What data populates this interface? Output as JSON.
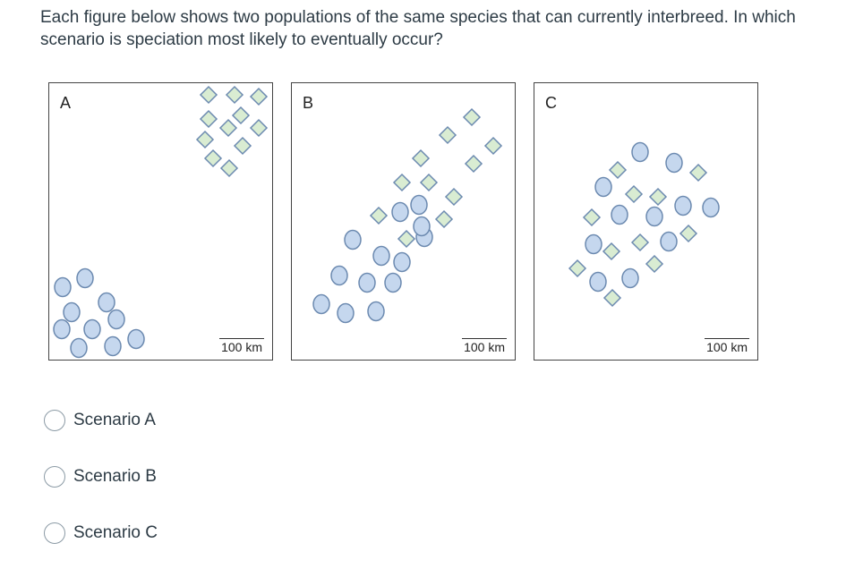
{
  "question": {
    "text": "Each figure below shows two populations of the same species that can currently interbreed. In which scenario is speciation most likely to eventually occur?"
  },
  "panels": [
    {
      "letter": "A",
      "scale": "100 km"
    },
    {
      "letter": "B",
      "scale": "100 km"
    },
    {
      "letter": "C",
      "scale": "100 km"
    }
  ],
  "options": [
    {
      "label": "Scenario A",
      "selected": false
    },
    {
      "label": "Scenario B",
      "selected": false
    },
    {
      "label": "Scenario C",
      "selected": false
    }
  ],
  "colors": {
    "circle_fill": "#c5d7ee",
    "circle_stroke": "#6c8ab0",
    "diamond_fill": "#d9ecd2",
    "diamond_stroke": "#6c8ab0",
    "text": "#2d3b45"
  }
}
